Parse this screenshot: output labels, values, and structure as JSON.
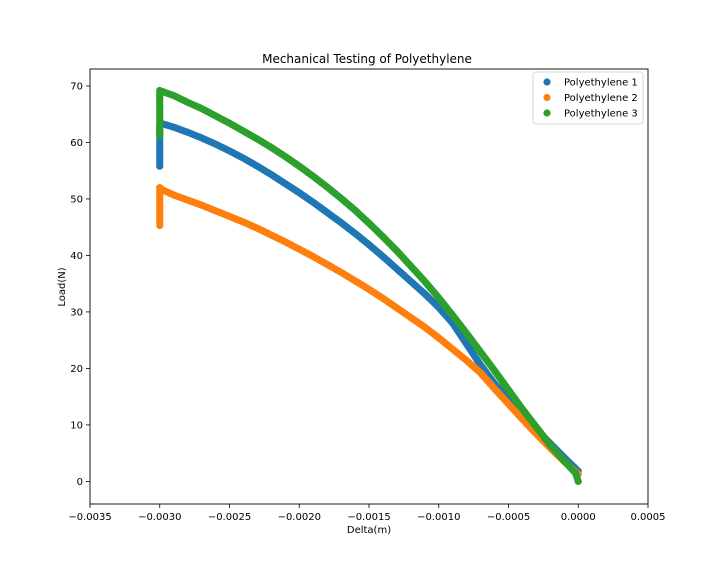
{
  "chart_data": {
    "type": "scatter",
    "title": "Mechanical Testing of Polyethylene",
    "xlabel": "Delta(m)",
    "ylabel": "Load(N)",
    "xlim": [
      -0.0035,
      0.0005
    ],
    "ylim": [
      -4,
      73
    ],
    "xticks": [
      -0.0035,
      -0.003,
      -0.0025,
      -0.002,
      -0.0015,
      -0.001,
      -0.0005,
      0.0,
      0.0005
    ],
    "xtick_labels": [
      "−0.0035",
      "−0.0030",
      "−0.0025",
      "−0.0020",
      "−0.0015",
      "−0.0010",
      "−0.0005",
      "0.0000",
      "0.0005"
    ],
    "yticks": [
      0,
      10,
      20,
      30,
      40,
      50,
      60,
      70
    ],
    "ytick_labels": [
      "0",
      "10",
      "20",
      "30",
      "40",
      "50",
      "60",
      "70"
    ],
    "grid": false,
    "legend_position": "top-right",
    "series": [
      {
        "name": "Polyethylene 1",
        "color": "#1f77b4",
        "points": [
          [
            0.0,
            1.8
          ],
          [
            -0.0001,
            4.2
          ],
          [
            -0.0002,
            6.7
          ],
          [
            -0.0003,
            9.2
          ],
          [
            -0.0004,
            11.8
          ],
          [
            -0.0005,
            14.5
          ],
          [
            -0.0006,
            17.3
          ],
          [
            -0.0007,
            20.6
          ],
          [
            -0.0008,
            24.3
          ],
          [
            -0.0009,
            28.0
          ],
          [
            -0.001,
            30.8
          ],
          [
            -0.0011,
            33.2
          ],
          [
            -0.0012,
            35.4
          ],
          [
            -0.0013,
            37.6
          ],
          [
            -0.0014,
            39.8
          ],
          [
            -0.0015,
            41.9
          ],
          [
            -0.0016,
            43.9
          ],
          [
            -0.0017,
            45.8
          ],
          [
            -0.0018,
            47.6
          ],
          [
            -0.0019,
            49.4
          ],
          [
            -0.002,
            51.1
          ],
          [
            -0.0021,
            52.7
          ],
          [
            -0.0022,
            54.3
          ],
          [
            -0.0023,
            55.8
          ],
          [
            -0.0024,
            57.2
          ],
          [
            -0.0025,
            58.5
          ],
          [
            -0.0026,
            59.7
          ],
          [
            -0.0027,
            60.8
          ],
          [
            -0.0028,
            61.8
          ],
          [
            -0.0029,
            62.7
          ],
          [
            -0.00298,
            63.3
          ],
          [
            -0.003,
            63.0
          ],
          [
            -0.003,
            61.0
          ],
          [
            -0.003,
            59.0
          ],
          [
            -0.003,
            57.0
          ],
          [
            -0.003,
            55.8
          ]
        ]
      },
      {
        "name": "Polyethylene 2",
        "color": "#ff7f0e",
        "points": [
          [
            0.0,
            1.3
          ],
          [
            -0.0001,
            3.5
          ],
          [
            -0.0002,
            5.9
          ],
          [
            -0.0003,
            8.4
          ],
          [
            -0.0004,
            11.0
          ],
          [
            -0.0005,
            13.7
          ],
          [
            -0.0006,
            16.4
          ],
          [
            -0.0007,
            19.2
          ],
          [
            -0.0008,
            21.4
          ],
          [
            -0.0009,
            23.4
          ],
          [
            -0.001,
            25.4
          ],
          [
            -0.0011,
            27.3
          ],
          [
            -0.0012,
            29.0
          ],
          [
            -0.0013,
            30.7
          ],
          [
            -0.0014,
            32.4
          ],
          [
            -0.0015,
            34.0
          ],
          [
            -0.0016,
            35.5
          ],
          [
            -0.0017,
            37.0
          ],
          [
            -0.0018,
            38.4
          ],
          [
            -0.0019,
            39.8
          ],
          [
            -0.002,
            41.1
          ],
          [
            -0.0021,
            42.4
          ],
          [
            -0.0022,
            43.6
          ],
          [
            -0.0023,
            44.8
          ],
          [
            -0.0024,
            45.9
          ],
          [
            -0.0025,
            46.9
          ],
          [
            -0.0026,
            47.9
          ],
          [
            -0.0027,
            48.9
          ],
          [
            -0.0028,
            49.8
          ],
          [
            -0.0029,
            50.7
          ],
          [
            -0.00298,
            51.6
          ],
          [
            -0.003,
            52.0
          ],
          [
            -0.003,
            50.5
          ],
          [
            -0.003,
            48.5
          ],
          [
            -0.003,
            46.5
          ],
          [
            -0.003,
            45.3
          ]
        ]
      },
      {
        "name": "Polyethylene 3",
        "color": "#2ca02c",
        "points": [
          [
            0.0,
            0.0
          ],
          [
            -2e-05,
            1.5
          ],
          [
            -0.0001,
            3.6
          ],
          [
            -0.0002,
            6.4
          ],
          [
            -0.0003,
            9.6
          ],
          [
            -0.0004,
            12.8
          ],
          [
            -0.0005,
            16.2
          ],
          [
            -0.0006,
            19.6
          ],
          [
            -0.0007,
            22.9
          ],
          [
            -0.0008,
            26.2
          ],
          [
            -0.0009,
            29.4
          ],
          [
            -0.001,
            32.5
          ],
          [
            -0.0011,
            35.4
          ],
          [
            -0.0012,
            38.1
          ],
          [
            -0.0013,
            40.8
          ],
          [
            -0.0014,
            43.3
          ],
          [
            -0.0015,
            45.7
          ],
          [
            -0.0016,
            48.0
          ],
          [
            -0.0017,
            50.1
          ],
          [
            -0.0018,
            52.1
          ],
          [
            -0.0019,
            54.0
          ],
          [
            -0.002,
            55.8
          ],
          [
            -0.0021,
            57.5
          ],
          [
            -0.0022,
            59.1
          ],
          [
            -0.0023,
            60.6
          ],
          [
            -0.0024,
            62.0
          ],
          [
            -0.0025,
            63.4
          ],
          [
            -0.0026,
            64.7
          ],
          [
            -0.0027,
            66.0
          ],
          [
            -0.0028,
            67.1
          ],
          [
            -0.0029,
            68.3
          ],
          [
            -0.00298,
            69.0
          ],
          [
            -0.003,
            69.2
          ],
          [
            -0.003,
            67.0
          ],
          [
            -0.003,
            65.0
          ],
          [
            -0.003,
            63.0
          ],
          [
            -0.003,
            61.2
          ]
        ]
      }
    ]
  }
}
